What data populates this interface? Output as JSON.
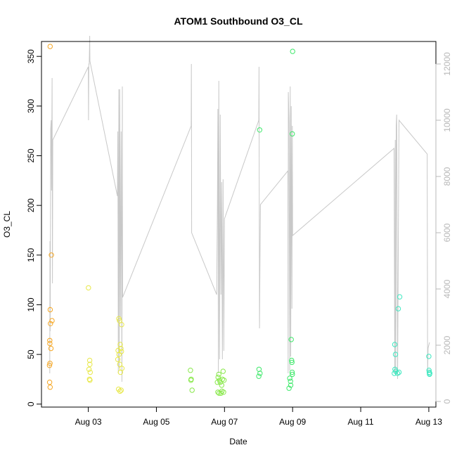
{
  "chart_data": {
    "type": "scatter",
    "title": "ATOM1 Southbound O3_CL",
    "xlabel": "Date",
    "ylabel": "O3_CL",
    "xlim": [
      "2019-08-01T15:00",
      "2019-08-13T05:00"
    ],
    "ylim": [
      -3,
      365
    ],
    "y2lim": [
      -200,
      12800
    ],
    "x_ticks": [
      {
        "label": "Aug 03",
        "date": "2019-08-03"
      },
      {
        "label": "Aug 05",
        "date": "2019-08-05"
      },
      {
        "label": "Aug 07",
        "date": "2019-08-07"
      },
      {
        "label": "Aug 09",
        "date": "2019-08-09"
      },
      {
        "label": "Aug 11",
        "date": "2019-08-11"
      },
      {
        "label": "Aug 13",
        "date": "2019-08-13"
      }
    ],
    "y_ticks": [
      0,
      50,
      100,
      150,
      200,
      250,
      300,
      350
    ],
    "y2_ticks": [
      0,
      2000,
      4000,
      6000,
      8000,
      10000,
      12000
    ],
    "colors": {
      "secondary_line": "#c8c8c8",
      "frame": "#000000",
      "right_axis": "#b8b8b8"
    },
    "series": [
      {
        "color": "#f5a623",
        "points": [
          [
            "2019-08-01T21:05",
            360
          ],
          [
            "2019-08-01T22:00",
            150
          ],
          [
            "2019-08-01T22:25",
            84
          ],
          [
            "2019-08-01T21:10",
            95
          ],
          [
            "2019-08-01T21:20",
            81
          ],
          [
            "2019-08-01T21:40",
            56
          ],
          [
            "2019-08-01T20:50",
            64
          ],
          [
            "2019-08-01T20:55",
            61
          ],
          [
            "2019-08-01T21:00",
            41
          ],
          [
            "2019-08-01T20:40",
            39
          ],
          [
            "2019-08-01T20:45",
            22
          ],
          [
            "2019-08-01T21:05",
            17
          ]
        ]
      },
      {
        "color": "#e8e84a",
        "points": [
          [
            "2019-08-03T00:05",
            117
          ],
          [
            "2019-08-03T01:00",
            44
          ],
          [
            "2019-08-03T01:05",
            40
          ],
          [
            "2019-08-03T00:30",
            35
          ],
          [
            "2019-08-03T01:20",
            32
          ],
          [
            "2019-08-03T00:50",
            25
          ],
          [
            "2019-08-03T01:10",
            24
          ],
          [
            "2019-08-03T21:00",
            54
          ],
          [
            "2019-08-03T21:30",
            86
          ],
          [
            "2019-08-03T22:00",
            84
          ],
          [
            "2019-08-03T23:30",
            80
          ],
          [
            "2019-08-03T22:30",
            60
          ],
          [
            "2019-08-03T23:00",
            56
          ],
          [
            "2019-08-03T23:20",
            53
          ],
          [
            "2019-08-03T21:40",
            50
          ],
          [
            "2019-08-03T20:50",
            45
          ],
          [
            "2019-08-03T22:10",
            40
          ],
          [
            "2019-08-03T23:40",
            36
          ],
          [
            "2019-08-03T22:40",
            32
          ],
          [
            "2019-08-03T21:20",
            15
          ],
          [
            "2019-08-03T22:20",
            13
          ],
          [
            "2019-08-03T23:10",
            14
          ]
        ]
      },
      {
        "color": "#88e84a",
        "points": [
          [
            "2019-08-06T00:00",
            34
          ],
          [
            "2019-08-06T00:30",
            25
          ],
          [
            "2019-08-06T00:20",
            24
          ],
          [
            "2019-08-06T01:10",
            14
          ],
          [
            "2019-08-06T19:00",
            22
          ],
          [
            "2019-08-06T19:30",
            27
          ],
          [
            "2019-08-06T20:00",
            30
          ],
          [
            "2019-08-06T20:30",
            24
          ],
          [
            "2019-08-06T21:00",
            22
          ],
          [
            "2019-08-06T22:00",
            19
          ],
          [
            "2019-08-06T22:30",
            25
          ],
          [
            "2019-08-06T23:00",
            33
          ],
          [
            "2019-08-06T23:40",
            24
          ],
          [
            "2019-08-06T19:20",
            12
          ],
          [
            "2019-08-06T20:10",
            11
          ],
          [
            "2019-08-06T21:30",
            11
          ],
          [
            "2019-08-06T22:10",
            13
          ],
          [
            "2019-08-06T23:20",
            12
          ]
        ]
      },
      {
        "color": "#3ee86a",
        "points": [
          [
            "2019-08-08T00:45",
            276
          ],
          [
            "2019-08-08T00:20",
            35
          ],
          [
            "2019-08-08T01:00",
            31
          ],
          [
            "2019-08-08T00:10",
            28
          ],
          [
            "2019-08-08T22:30",
            23
          ],
          [
            "2019-08-08T23:00",
            65
          ],
          [
            "2019-08-08T23:20",
            44
          ],
          [
            "2019-08-08T23:30",
            42
          ],
          [
            "2019-08-08T23:40",
            32
          ],
          [
            "2019-08-08T22:00",
            26
          ],
          [
            "2019-08-08T22:40",
            19
          ],
          [
            "2019-08-08T21:30",
            16
          ],
          [
            "2019-08-08T23:50",
            30
          ],
          [
            "2019-08-09T00:00",
            355
          ],
          [
            "2019-08-08T23:45",
            272
          ]
        ]
      },
      {
        "color": "#3ee8c0",
        "points": [
          [
            "2019-08-12T00:00",
            60
          ],
          [
            "2019-08-12T00:30",
            50
          ],
          [
            "2019-08-12T03:30",
            108
          ],
          [
            "2019-08-12T02:30",
            96
          ],
          [
            "2019-08-12T00:10",
            35
          ],
          [
            "2019-08-12T00:40",
            33
          ],
          [
            "2019-08-12T02:00",
            31
          ],
          [
            "2019-08-12T03:00",
            32
          ],
          [
            "2019-08-11T23:40",
            31
          ],
          [
            "2019-08-13T00:00",
            48
          ],
          [
            "2019-08-13T00:10",
            34
          ],
          [
            "2019-08-13T00:20",
            32
          ],
          [
            "2019-08-13T00:30",
            30
          ],
          [
            "2019-08-13T00:40",
            31
          ]
        ]
      }
    ],
    "secondary_line": {
      "y_axis": "right",
      "points": [
        [
          "2019-08-01T20:50",
          1000
        ],
        [
          "2019-08-01T21:00",
          5700
        ],
        [
          "2019-08-01T21:10",
          2500
        ],
        [
          "2019-08-01T21:30",
          9700
        ],
        [
          "2019-08-01T21:50",
          10000
        ],
        [
          "2019-08-01T22:05",
          7500
        ],
        [
          "2019-08-01T22:30",
          11500
        ],
        [
          "2019-08-01T22:45",
          4200
        ],
        [
          "2019-08-01T23:00",
          9300
        ],
        [
          "2019-08-03T00:00",
          11900
        ],
        [
          "2019-08-03T00:10",
          10000
        ],
        [
          "2019-08-03T00:20",
          12000
        ],
        [
          "2019-08-03T00:40",
          12000
        ],
        [
          "2019-08-03T01:00",
          13000
        ],
        [
          "2019-08-03T01:10",
          12100
        ],
        [
          "2019-08-03T20:30",
          7300
        ],
        [
          "2019-08-03T20:50",
          9600
        ],
        [
          "2019-08-03T21:10",
          1000
        ],
        [
          "2019-08-03T21:30",
          11100
        ],
        [
          "2019-08-03T21:50",
          1200
        ],
        [
          "2019-08-03T22:10",
          11100
        ],
        [
          "2019-08-03T22:40",
          3000
        ],
        [
          "2019-08-03T23:10",
          9600
        ],
        [
          "2019-08-03T23:40",
          700
        ],
        [
          "2019-08-04T00:00",
          11200
        ],
        [
          "2019-08-04T00:10",
          3700
        ],
        [
          "2019-08-06T00:30",
          9800
        ],
        [
          "2019-08-06T00:40",
          12000
        ],
        [
          "2019-08-06T00:50",
          6000
        ],
        [
          "2019-08-06T18:30",
          3800
        ],
        [
          "2019-08-06T19:00",
          6900
        ],
        [
          "2019-08-06T19:20",
          10400
        ],
        [
          "2019-08-06T19:40",
          1000
        ],
        [
          "2019-08-06T20:00",
          11400
        ],
        [
          "2019-08-06T20:30",
          1500
        ],
        [
          "2019-08-06T21:00",
          10200
        ],
        [
          "2019-08-06T21:30",
          3800
        ],
        [
          "2019-08-06T22:00",
          7800
        ],
        [
          "2019-08-06T22:30",
          1500
        ],
        [
          "2019-08-06T23:00",
          7900
        ],
        [
          "2019-08-06T23:30",
          1800
        ],
        [
          "2019-08-07T00:00",
          6500
        ],
        [
          "2019-08-08T00:10",
          10000
        ],
        [
          "2019-08-08T00:20",
          11900
        ],
        [
          "2019-08-08T00:40",
          2600
        ],
        [
          "2019-08-08T01:00",
          5200
        ],
        [
          "2019-08-08T01:20",
          7000
        ],
        [
          "2019-08-08T20:40",
          8200
        ],
        [
          "2019-08-08T20:50",
          1000
        ],
        [
          "2019-08-08T21:00",
          11000
        ],
        [
          "2019-08-08T21:30",
          9900
        ],
        [
          "2019-08-08T22:00",
          1100
        ],
        [
          "2019-08-08T22:20",
          11200
        ],
        [
          "2019-08-08T22:40",
          1600
        ],
        [
          "2019-08-08T23:00",
          10500
        ],
        [
          "2019-08-08T23:30",
          3300
        ],
        [
          "2019-08-08T23:50",
          9800
        ],
        [
          "2019-08-09T00:00",
          5900
        ],
        [
          "2019-08-11T23:30",
          9000
        ],
        [
          "2019-08-12T00:00",
          1000
        ],
        [
          "2019-08-12T00:20",
          9300
        ],
        [
          "2019-08-12T00:40",
          1000
        ],
        [
          "2019-08-12T01:00",
          9800
        ],
        [
          "2019-08-12T01:20",
          10200
        ],
        [
          "2019-08-12T02:00",
          800
        ],
        [
          "2019-08-12T03:00",
          10000
        ],
        [
          "2019-08-12T22:50",
          8800
        ],
        [
          "2019-08-12T23:10",
          1000
        ],
        [
          "2019-08-12T23:30",
          1900
        ],
        [
          "2019-08-13T00:00",
          2000
        ],
        [
          "2019-08-13T00:30",
          2100
        ]
      ]
    }
  }
}
